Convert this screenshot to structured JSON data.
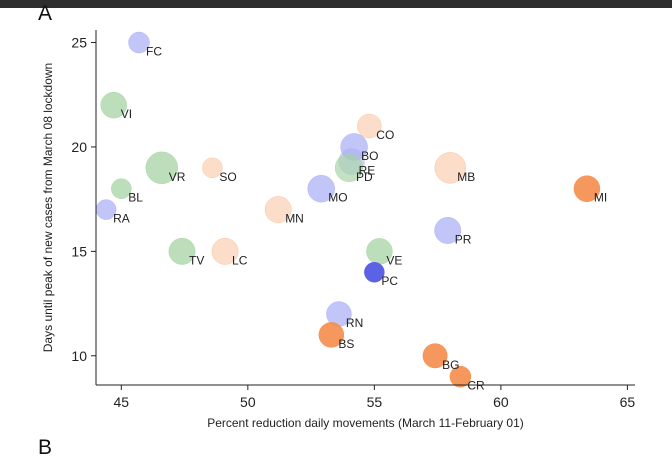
{
  "panels": {
    "a_letter": "A",
    "b_letter": "B"
  },
  "colors": {
    "orange": "#f58d4b",
    "blue": "#a7acf5",
    "green": "#a5d3a3",
    "dark_blue": "#5b62e6"
  },
  "chart_data": {
    "type": "scatter",
    "title": "",
    "xlabel": "Percent reduction daily movements (March 11-February 01)",
    "ylabel": "Days until peak of new cases from March 08 lockdown",
    "xlim": [
      44,
      65.3
    ],
    "ylim": [
      8.6,
      25.6
    ],
    "xticks": [
      45,
      50,
      55,
      60,
      65
    ],
    "yticks": [
      10,
      15,
      20,
      25
    ],
    "grid": false,
    "points": [
      {
        "label": "FC",
        "x": 45.7,
        "y": 25,
        "size": 0.45,
        "color": "blue",
        "alpha": 0.7
      },
      {
        "label": "VI",
        "x": 44.7,
        "y": 22,
        "size": 0.7,
        "color": "green",
        "alpha": 0.75
      },
      {
        "label": "CO",
        "x": 54.8,
        "y": 21,
        "size": 0.6,
        "color": "orange",
        "alpha": 0.3
      },
      {
        "label": "BO",
        "x": 54.2,
        "y": 20,
        "size": 0.75,
        "color": "blue",
        "alpha": 0.7
      },
      {
        "label": "RE",
        "x": 54.1,
        "y": 19.3,
        "size": 0.7,
        "color": "blue",
        "alpha": 0.5
      },
      {
        "label": "PD",
        "x": 54.0,
        "y": 19,
        "size": 0.8,
        "color": "green",
        "alpha": 0.65
      },
      {
        "label": "VR",
        "x": 46.6,
        "y": 19,
        "size": 1.0,
        "color": "green",
        "alpha": 0.75
      },
      {
        "label": "SO",
        "x": 48.6,
        "y": 19,
        "size": 0.4,
        "color": "orange",
        "alpha": 0.3
      },
      {
        "label": "MB",
        "x": 58.0,
        "y": 19,
        "size": 0.95,
        "color": "orange",
        "alpha": 0.3
      },
      {
        "label": "MO",
        "x": 52.9,
        "y": 18,
        "size": 0.75,
        "color": "blue",
        "alpha": 0.7
      },
      {
        "label": "MI",
        "x": 63.4,
        "y": 18,
        "size": 0.7,
        "color": "orange",
        "alpha": 0.9
      },
      {
        "label": "BL",
        "x": 45.0,
        "y": 18,
        "size": 0.4,
        "color": "green",
        "alpha": 0.75
      },
      {
        "label": "RA",
        "x": 44.4,
        "y": 17,
        "size": 0.4,
        "color": "blue",
        "alpha": 0.7
      },
      {
        "label": "MN",
        "x": 51.2,
        "y": 17,
        "size": 0.72,
        "color": "orange",
        "alpha": 0.3
      },
      {
        "label": "PR",
        "x": 57.9,
        "y": 16,
        "size": 0.72,
        "color": "blue",
        "alpha": 0.7
      },
      {
        "label": "TV",
        "x": 47.4,
        "y": 15,
        "size": 0.72,
        "color": "green",
        "alpha": 0.75
      },
      {
        "label": "LC",
        "x": 49.1,
        "y": 15,
        "size": 0.72,
        "color": "orange",
        "alpha": 0.3
      },
      {
        "label": "VE",
        "x": 55.2,
        "y": 15,
        "size": 0.7,
        "color": "green",
        "alpha": 0.75
      },
      {
        "label": "PC",
        "x": 55.0,
        "y": 14,
        "size": 0.4,
        "color": "dark_blue",
        "alpha": 1.0
      },
      {
        "label": "RN",
        "x": 53.6,
        "y": 12,
        "size": 0.65,
        "color": "blue",
        "alpha": 0.7
      },
      {
        "label": "BS",
        "x": 53.3,
        "y": 11,
        "size": 0.65,
        "color": "orange",
        "alpha": 0.9
      },
      {
        "label": "BG",
        "x": 57.4,
        "y": 10,
        "size": 0.62,
        "color": "orange",
        "alpha": 0.9
      },
      {
        "label": "CR",
        "x": 58.4,
        "y": 9,
        "size": 0.45,
        "color": "orange",
        "alpha": 0.9
      }
    ]
  }
}
